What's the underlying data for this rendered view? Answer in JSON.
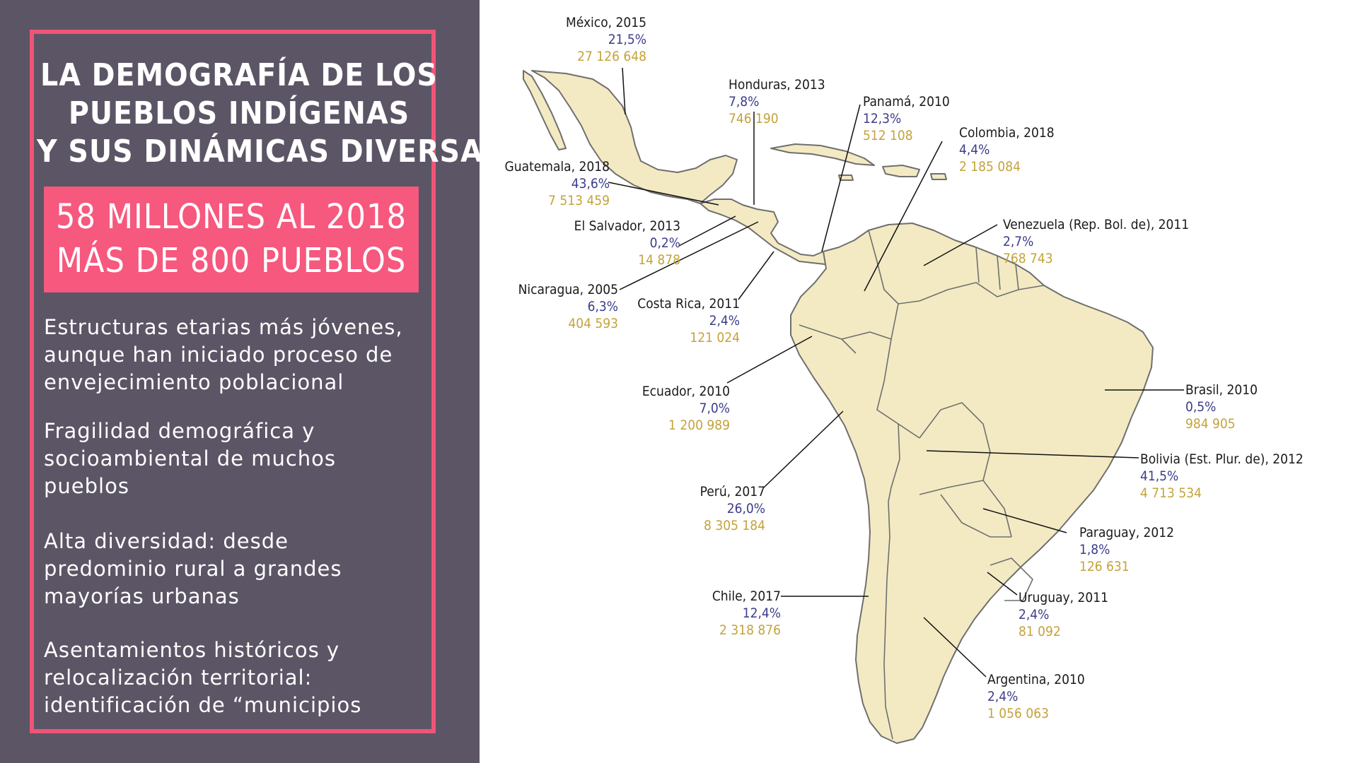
{
  "title_lines": [
    "LA DEMOGRAFÍA DE LOS",
    "PUEBLOS INDÍGENAS",
    "Y SUS DINÁMICAS DIVERSAS"
  ],
  "highlight_lines": [
    "58 MILLONES AL 2018",
    "MÁS DE 800 PUEBLOS"
  ],
  "bullets": [
    [
      "Estructuras etarias más jóvenes,",
      "aunque han iniciado proceso de",
      "envejecimiento poblacional"
    ],
    [
      "Fragilidad demográfica y",
      "socioambiental de muchos",
      "pueblos"
    ],
    [
      "Alta diversidad: desde",
      "predominio rural a grandes",
      "mayorías urbanas"
    ],
    [
      "Asentamientos históricos y",
      "relocalización territorial:",
      "identificación de “municipios"
    ]
  ],
  "colors": {
    "panel": "#5c5566",
    "accent": "#f05477",
    "land": "#f3eac3",
    "border": "#777777",
    "percent": "#3b3d8a",
    "population": "#c4a33a"
  },
  "countries": [
    {
      "name": "México, 2015",
      "pct": "21,5%",
      "pop": "27 126 648"
    },
    {
      "name": "Honduras, 2013",
      "pct": "7,8%",
      "pop": "746 190"
    },
    {
      "name": "Panamá, 2010",
      "pct": "12,3%",
      "pop": "512 108"
    },
    {
      "name": "Colombia, 2018",
      "pct": "4,4%",
      "pop": "2 185 084"
    },
    {
      "name": "Guatemala, 2018",
      "pct": "43,6%",
      "pop": "7 513 459"
    },
    {
      "name": "El Salvador, 2013",
      "pct": "0,2%",
      "pop": "14 878"
    },
    {
      "name": "Venezuela (Rep. Bol. de), 2011",
      "pct": "2,7%",
      "pop": "768 743"
    },
    {
      "name": "Nicaragua, 2005",
      "pct": "6,3%",
      "pop": "404 593"
    },
    {
      "name": "Costa Rica, 2011",
      "pct": "2,4%",
      "pop": "121 024"
    },
    {
      "name": "Ecuador, 2010",
      "pct": "7,0%",
      "pop": "1 200 989"
    },
    {
      "name": "Brasil, 2010",
      "pct": "0,5%",
      "pop": "984 905"
    },
    {
      "name": "Bolivia (Est. Plur. de), 2012",
      "pct": "41,5%",
      "pop": "4 713 534"
    },
    {
      "name": "Perú, 2017",
      "pct": "26,0%",
      "pop": "8 305 184"
    },
    {
      "name": "Paraguay, 2012",
      "pct": "1,8%",
      "pop": "126 631"
    },
    {
      "name": "Chile, 2017",
      "pct": "12,4%",
      "pop": "2 318 876"
    },
    {
      "name": "Uruguay, 2011",
      "pct": "2,4%",
      "pop": "81 092"
    },
    {
      "name": "Argentina, 2010",
      "pct": "2,4%",
      "pop": "1 056 063"
    }
  ]
}
